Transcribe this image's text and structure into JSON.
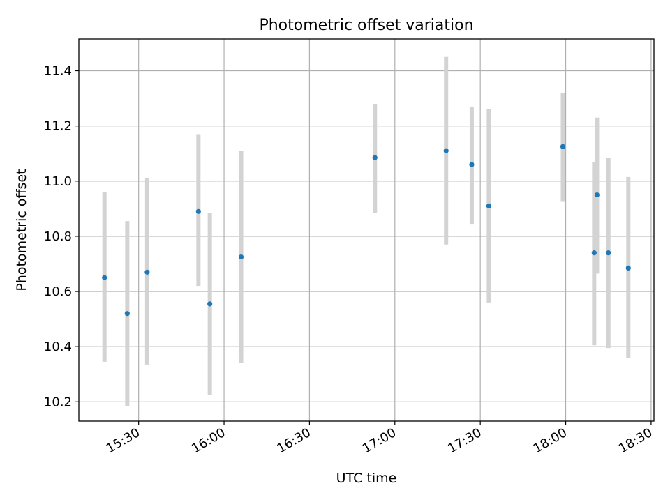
{
  "chart_data": {
    "type": "scatter",
    "title": "Photometric offset variation",
    "xlabel": "UTC time",
    "ylabel": "Photometric offset",
    "xlim": [
      "15:09",
      "18:31"
    ],
    "ylim": [
      10.13,
      11.515
    ],
    "grid": true,
    "x_ticks": [
      "15:30",
      "16:00",
      "16:30",
      "17:00",
      "17:30",
      "18:00",
      "18:30"
    ],
    "y_ticks": [
      10.2,
      10.4,
      10.6,
      10.8,
      11.0,
      11.2,
      11.4
    ],
    "y_tick_labels": [
      "10.2",
      "10.4",
      "10.6",
      "10.8",
      "11.0",
      "11.2",
      "11.4"
    ],
    "series": [
      {
        "x": [
          "15:18",
          "15:26",
          "15:33",
          "15:51",
          "15:55",
          "16:06",
          "16:53",
          "17:18",
          "17:27",
          "17:33",
          "17:59",
          "18:10",
          "18:11",
          "18:15",
          "18:22"
        ],
        "y": [
          10.65,
          10.52,
          10.67,
          10.89,
          10.555,
          10.725,
          11.085,
          11.11,
          11.06,
          10.91,
          11.125,
          10.74,
          10.95,
          10.74,
          10.685
        ],
        "err_low": [
          10.345,
          10.185,
          10.335,
          10.62,
          10.225,
          10.34,
          10.885,
          10.77,
          10.845,
          10.56,
          10.925,
          10.405,
          10.665,
          10.395,
          10.36
        ],
        "err_high": [
          10.96,
          10.855,
          11.01,
          11.17,
          10.885,
          11.11,
          11.28,
          11.45,
          11.27,
          11.26,
          11.32,
          11.07,
          11.23,
          11.085,
          11.015
        ]
      }
    ]
  },
  "colors": {
    "point": "#1f77b4",
    "errorbar": "#d3d3d3",
    "grid": "#b0b0b0",
    "axes": "#000000"
  }
}
